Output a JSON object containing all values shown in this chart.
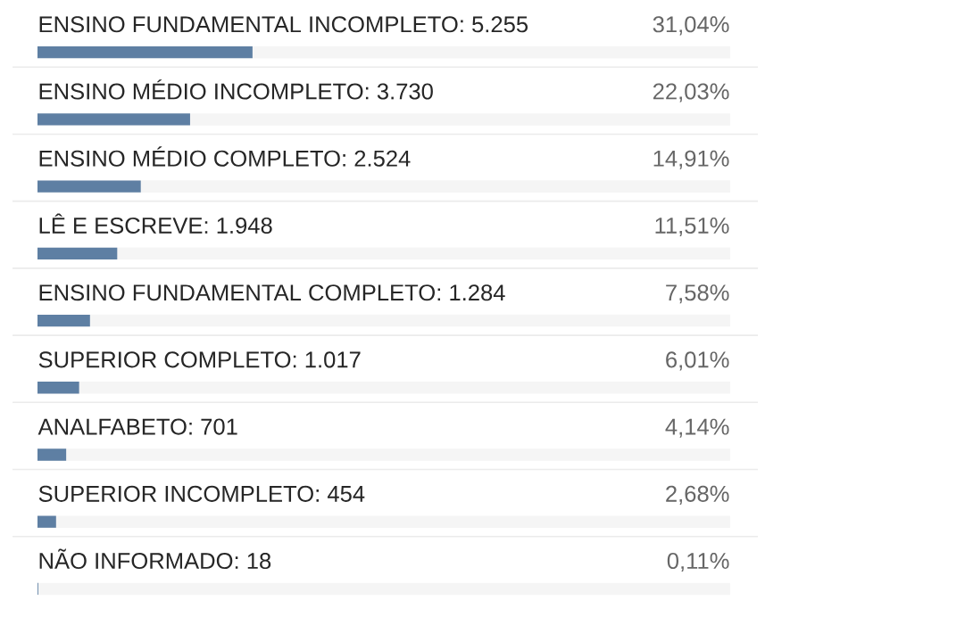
{
  "chart_data": {
    "type": "bar",
    "orientation": "horizontal",
    "categories": [
      "ENSINO FUNDAMENTAL INCOMPLETO: 5.255",
      "ENSINO MÉDIO INCOMPLETO: 3.730",
      "ENSINO MÉDIO COMPLETO: 2.524",
      "LÊ E ESCREVE: 1.948",
      "ENSINO FUNDAMENTAL COMPLETO: 1.284",
      "SUPERIOR COMPLETO: 1.017",
      "ANALFABETO: 701",
      "SUPERIOR INCOMPLETO: 454",
      "NÃO INFORMADO: 18"
    ],
    "values": [
      31.04,
      22.03,
      14.91,
      11.51,
      7.58,
      6.01,
      4.14,
      2.68,
      0.11
    ],
    "value_labels": [
      "31,04%",
      "22,03%",
      "14,91%",
      "11,51%",
      "7,58%",
      "6,01%",
      "4,14%",
      "2,68%",
      "0,11%"
    ],
    "color": "#5e7fa3",
    "xlim": [
      0,
      100
    ]
  }
}
